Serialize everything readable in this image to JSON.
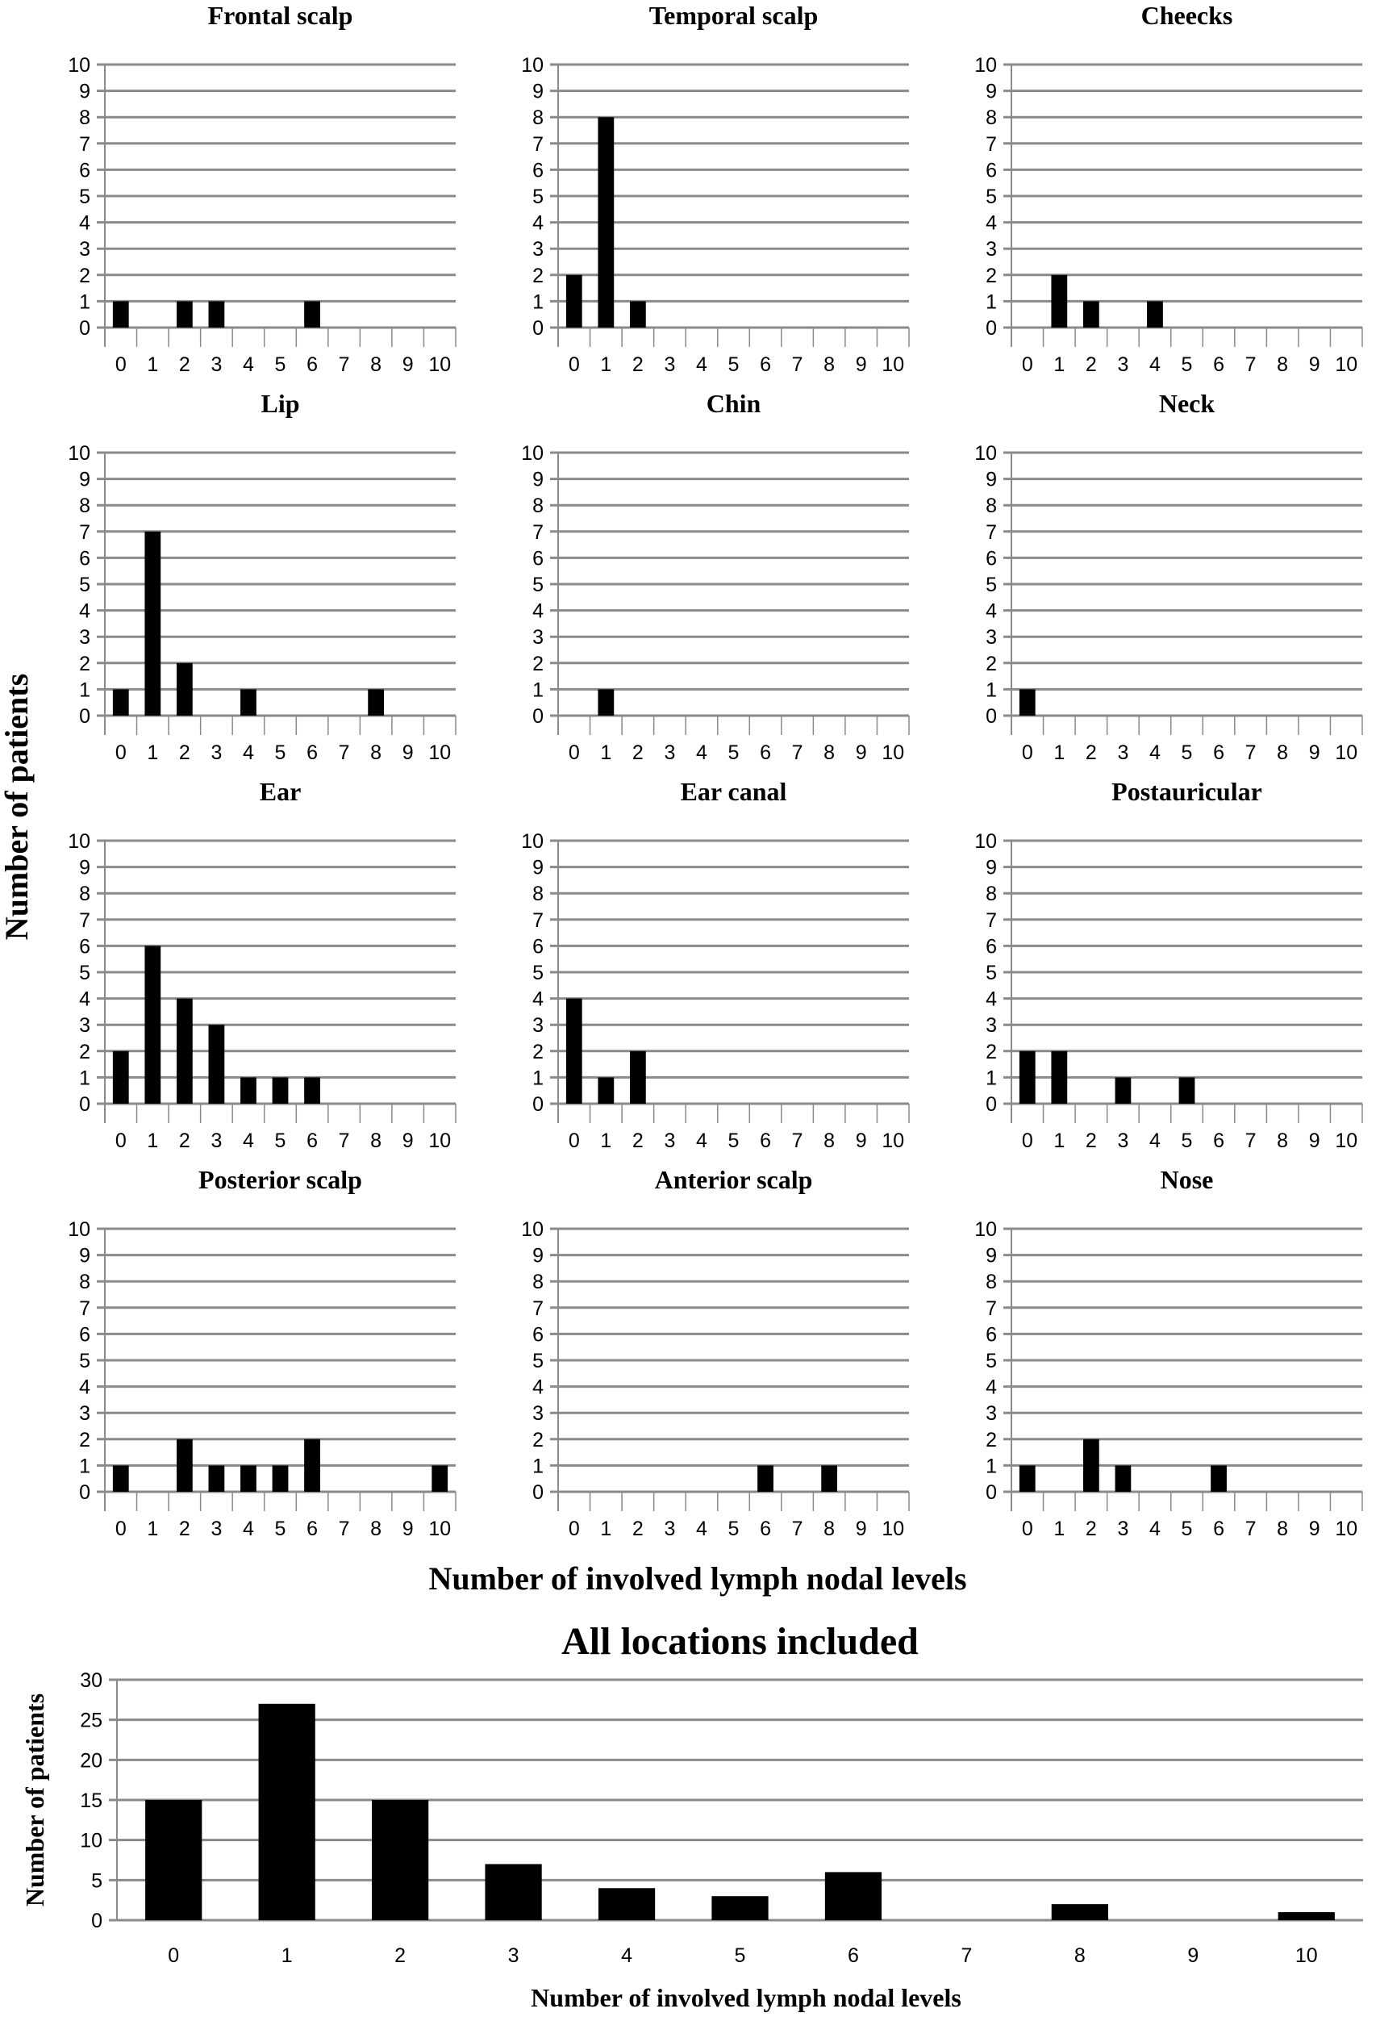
{
  "chart_data": [
    {
      "type": "bar",
      "title": "Frontal scalp",
      "categories": [
        0,
        1,
        2,
        3,
        4,
        5,
        6,
        7,
        8,
        9,
        10
      ],
      "values": [
        1,
        0,
        1,
        1,
        0,
        0,
        1,
        0,
        0,
        0,
        0
      ],
      "ylim": [
        0,
        10
      ]
    },
    {
      "type": "bar",
      "title": "Temporal scalp",
      "categories": [
        0,
        1,
        2,
        3,
        4,
        5,
        6,
        7,
        8,
        9,
        10
      ],
      "values": [
        2,
        8,
        1,
        0,
        0,
        0,
        0,
        0,
        0,
        0,
        0
      ],
      "ylim": [
        0,
        10
      ]
    },
    {
      "type": "bar",
      "title": "Cheecks",
      "categories": [
        0,
        1,
        2,
        3,
        4,
        5,
        6,
        7,
        8,
        9,
        10
      ],
      "values": [
        0,
        2,
        1,
        0,
        1,
        0,
        0,
        0,
        0,
        0,
        0
      ],
      "ylim": [
        0,
        10
      ]
    },
    {
      "type": "bar",
      "title": "Lip",
      "categories": [
        0,
        1,
        2,
        3,
        4,
        5,
        6,
        7,
        8,
        9,
        10
      ],
      "values": [
        1,
        7,
        2,
        0,
        1,
        0,
        0,
        0,
        1,
        0,
        0
      ],
      "ylim": [
        0,
        10
      ]
    },
    {
      "type": "bar",
      "title": "Chin",
      "categories": [
        0,
        1,
        2,
        3,
        4,
        5,
        6,
        7,
        8,
        9,
        10
      ],
      "values": [
        0,
        1,
        0,
        0,
        0,
        0,
        0,
        0,
        0,
        0,
        0
      ],
      "ylim": [
        0,
        10
      ]
    },
    {
      "type": "bar",
      "title": "Neck",
      "categories": [
        0,
        1,
        2,
        3,
        4,
        5,
        6,
        7,
        8,
        9,
        10
      ],
      "values": [
        1,
        0,
        0,
        0,
        0,
        0,
        0,
        0,
        0,
        0,
        0
      ],
      "ylim": [
        0,
        10
      ]
    },
    {
      "type": "bar",
      "title": "Ear",
      "categories": [
        0,
        1,
        2,
        3,
        4,
        5,
        6,
        7,
        8,
        9,
        10
      ],
      "values": [
        2,
        6,
        4,
        3,
        1,
        1,
        1,
        0,
        0,
        0,
        0
      ],
      "ylim": [
        0,
        10
      ]
    },
    {
      "type": "bar",
      "title": "Ear canal",
      "categories": [
        0,
        1,
        2,
        3,
        4,
        5,
        6,
        7,
        8,
        9,
        10
      ],
      "values": [
        4,
        1,
        2,
        0,
        0,
        0,
        0,
        0,
        0,
        0,
        0
      ],
      "ylim": [
        0,
        10
      ]
    },
    {
      "type": "bar",
      "title": "Postauricular",
      "categories": [
        0,
        1,
        2,
        3,
        4,
        5,
        6,
        7,
        8,
        9,
        10
      ],
      "values": [
        2,
        2,
        0,
        1,
        0,
        1,
        0,
        0,
        0,
        0,
        0
      ],
      "ylim": [
        0,
        10
      ]
    },
    {
      "type": "bar",
      "title": "Posterior scalp",
      "categories": [
        0,
        1,
        2,
        3,
        4,
        5,
        6,
        7,
        8,
        9,
        10
      ],
      "values": [
        1,
        0,
        2,
        1,
        1,
        1,
        2,
        0,
        0,
        0,
        1
      ],
      "ylim": [
        0,
        10
      ]
    },
    {
      "type": "bar",
      "title": "Anterior scalp",
      "categories": [
        0,
        1,
        2,
        3,
        4,
        5,
        6,
        7,
        8,
        9,
        10
      ],
      "values": [
        0,
        0,
        0,
        0,
        0,
        0,
        1,
        0,
        1,
        0,
        0
      ],
      "ylim": [
        0,
        10
      ]
    },
    {
      "type": "bar",
      "title": "Nose",
      "categories": [
        0,
        1,
        2,
        3,
        4,
        5,
        6,
        7,
        8,
        9,
        10
      ],
      "values": [
        1,
        0,
        2,
        1,
        0,
        0,
        1,
        0,
        0,
        0,
        0
      ],
      "ylim": [
        0,
        10
      ]
    },
    {
      "type": "bar",
      "title": "All locations included",
      "categories": [
        0,
        1,
        2,
        3,
        4,
        5,
        6,
        7,
        8,
        9,
        10
      ],
      "values": [
        15,
        27,
        15,
        7,
        4,
        3,
        6,
        0,
        2,
        0,
        1
      ],
      "ylim": [
        0,
        30
      ],
      "yticks": [
        0,
        5,
        10,
        15,
        20,
        25,
        30
      ],
      "xlabel": "Number of involved lymph nodal levels",
      "ylabel": "Number of patients"
    }
  ],
  "shared": {
    "xlabel": "Number of involved lymph nodal levels",
    "ylabel": "Number of patients"
  },
  "colors": {
    "bar": "#000000",
    "grid": "#8a8a8a"
  }
}
